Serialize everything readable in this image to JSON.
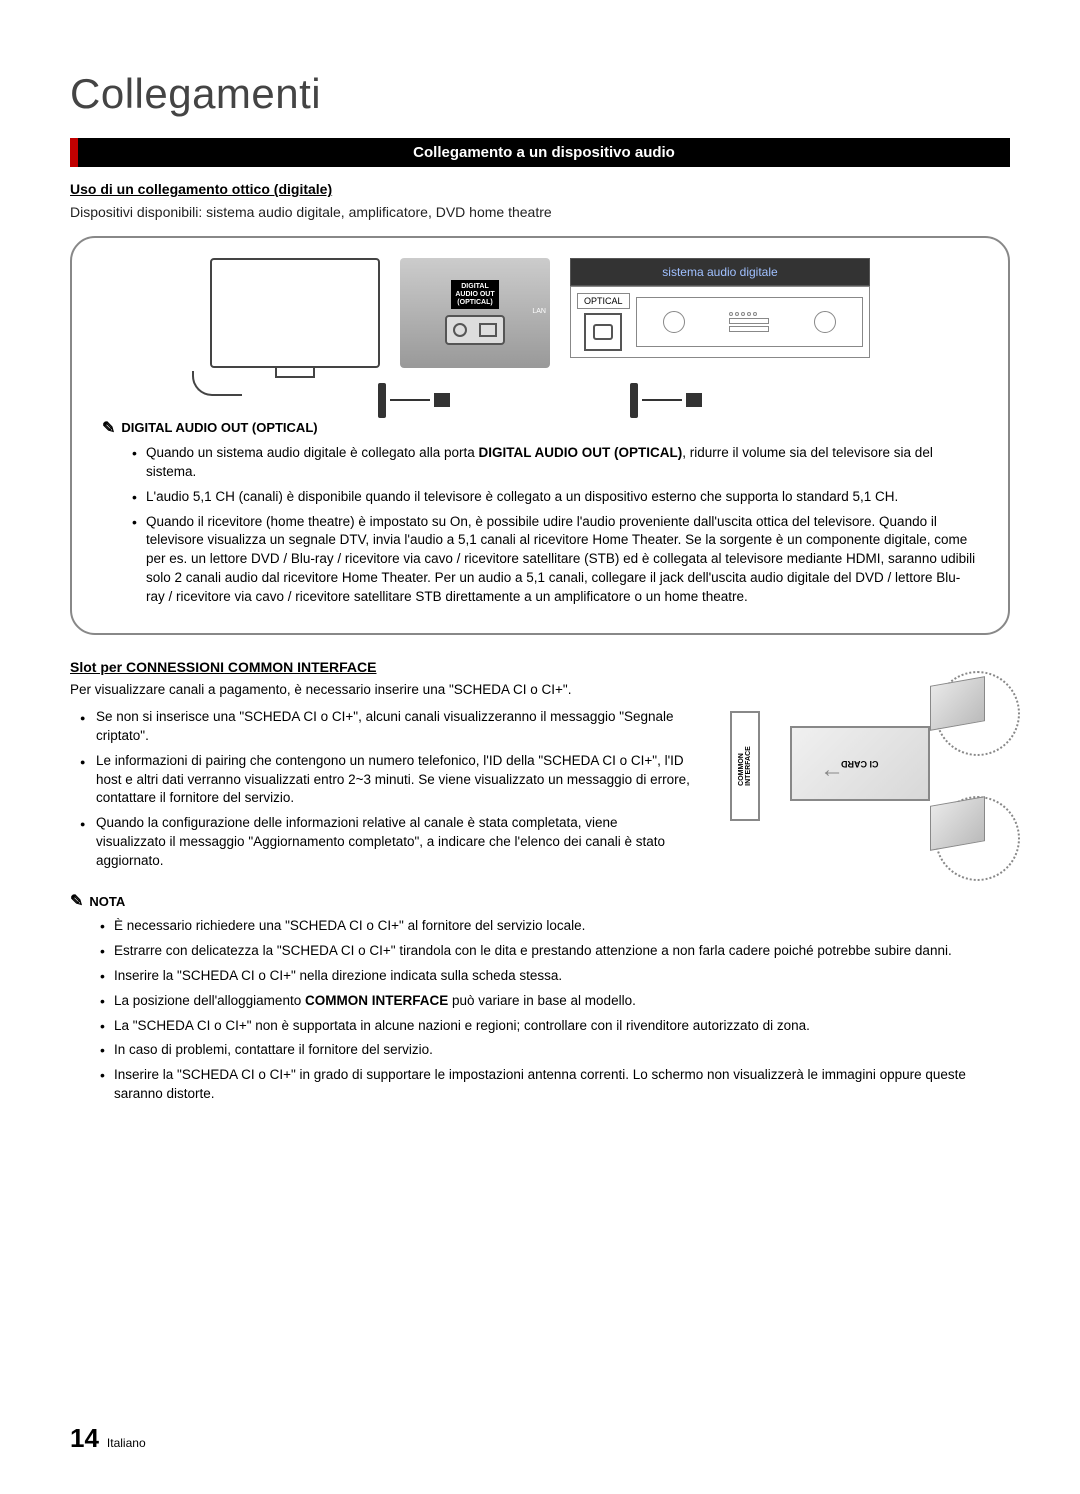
{
  "page_title": "Collegamenti",
  "section_header": "Collegamento a un dispositivo audio",
  "subsection1_title": "Uso di un collegamento ottico (digitale)",
  "subsection1_body": "Dispositivi disponibili: sistema audio digitale, amplificatore, DVD home theatre",
  "diagram": {
    "panel_label": "DIGITAL\nAUDIO OUT\n(OPTICAL)",
    "panel_lan": "LAN",
    "audio_system_title": "sistema audio digitale",
    "optical_label": "OPTICAL"
  },
  "digital_audio_heading": "DIGITAL AUDIO OUT (OPTICAL)",
  "digital_audio_bullets": [
    {
      "pre": "Quando un sistema audio digitale è collegato alla porta ",
      "bold": "DIGITAL AUDIO OUT (OPTICAL)",
      "post": ", ridurre il volume sia del televisore sia del sistema."
    },
    {
      "text": "L'audio 5,1 CH (canali) è disponibile quando il televisore è collegato a un dispositivo esterno che supporta lo standard 5,1 CH."
    },
    {
      "text": "Quando il ricevitore (home theatre) è impostato su On, è possibile udire l'audio proveniente dall'uscita ottica del televisore. Quando il televisore visualizza un segnale DTV, invia l'audio a 5,1 canali al ricevitore Home Theater. Se la sorgente è un componente digitale, come per es. un lettore DVD / Blu-ray / ricevitore via cavo / ricevitore satellitare (STB) ed è collegata al televisore mediante HDMI, saranno udibili solo 2 canali audio dal ricevitore Home Theater. Per un audio a 5,1 canali, collegare il jack dell'uscita audio digitale del DVD / lettore Blu-ray / ricevitore via cavo / ricevitore satellitare STB direttamente a un amplificatore o un home theatre."
    }
  ],
  "ci_title_pre": "Slot per ",
  "ci_title_bold": "CONNESSIONI",
  "ci_title_post": " COMMON INTERFACE",
  "ci_intro": "Per visualizzare canali a pagamento, è necessario inserire una \"SCHEDA CI o CI+\".",
  "ci_bullets": [
    "Se non si inserisce una \"SCHEDA CI o CI+\", alcuni canali visualizzeranno il messaggio \"Segnale criptato\".",
    "Le informazioni di pairing che contengono un numero telefonico, l'ID della \"SCHEDA CI o CI+\", l'ID host e altri dati verranno visualizzati entro 2~3 minuti. Se viene visualizzato un messaggio di errore, contattare il fornitore del servizio.",
    "Quando la configurazione delle informazioni relative al canale è stata completata, viene visualizzato il messaggio \"Aggiornamento completato\", a indicare che l'elenco dei canali è stato aggiornato."
  ],
  "ci_slot_label": "COMMON\nINTERFACE",
  "ci_card_label": "CI CARD",
  "nota_heading": "NOTA",
  "nota_bullets": [
    {
      "text": "È necessario richiedere una \"SCHEDA CI o CI+\" al fornitore del servizio locale."
    },
    {
      "text": "Estrarre con delicatezza la \"SCHEDA CI o CI+\" tirandola con le dita e prestando attenzione a non farla cadere poiché potrebbe subire danni."
    },
    {
      "text": "Inserire la \"SCHEDA CI o CI+\" nella direzione indicata sulla scheda stessa."
    },
    {
      "pre": "La posizione dell'alloggiamento ",
      "bold": "COMMON INTERFACE",
      "post": " può variare in base al modello."
    },
    {
      "text": "La \"SCHEDA CI o CI+\" non è supportata in alcune nazioni e regioni; controllare con il rivenditore autorizzato di zona."
    },
    {
      "text": "In caso di problemi, contattare il fornitore del servizio."
    },
    {
      "text": "Inserire la \"SCHEDA CI o CI+\" in grado di supportare le impostazioni antenna correnti. Lo schermo non visualizzerà le immagini oppure queste saranno distorte."
    }
  ],
  "footer": {
    "page_number": "14",
    "language": "Italiano"
  },
  "colors": {
    "header_bg": "#000000",
    "header_accent": "#c00000",
    "header_text": "#ffffff",
    "body_text": "#222222",
    "diagram_border": "#888888",
    "audio_title_fg": "#a0c0ff"
  }
}
